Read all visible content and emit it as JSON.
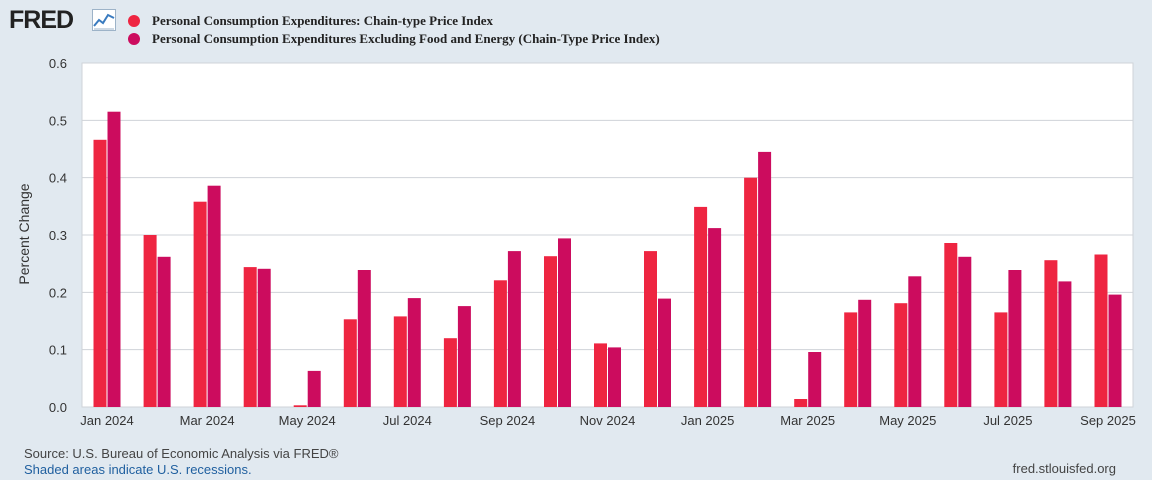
{
  "brand": {
    "logo_text": "FRED",
    "logo_icon": "line-graph-icon"
  },
  "legend": [
    {
      "label": "Personal Consumption Expenditures: Chain-type Price Index",
      "color": "#ee2541"
    },
    {
      "label": "Personal Consumption Expenditures Excluding Food and Energy (Chain-Type Price Index)",
      "color": "#cc0c5e"
    }
  ],
  "footer": {
    "source": "Source: U.S. Bureau of Economic Analysis via FRED®",
    "recession_note": "Shaded areas indicate U.S. recessions.",
    "site": "fred.stlouisfed.org"
  },
  "chart_data": {
    "type": "bar",
    "ylabel": "Percent Change",
    "ylim": [
      0,
      0.6
    ],
    "yticks": [
      "0.0",
      "0.1",
      "0.2",
      "0.3",
      "0.4",
      "0.5",
      "0.6"
    ],
    "grid": true,
    "categories": [
      "2024-01",
      "2024-02",
      "2024-03",
      "2024-04",
      "2024-05",
      "2024-06",
      "2024-07",
      "2024-08",
      "2024-09",
      "2024-10",
      "2024-11",
      "2024-12",
      "2025-01",
      "2025-02",
      "2025-03",
      "2025-04",
      "2025-05",
      "2025-06",
      "2025-07",
      "2025-08",
      "2025-09"
    ],
    "xtick_labels": [
      {
        "category": "2024-01",
        "label": "Jan 2024"
      },
      {
        "category": "2024-03",
        "label": "Mar 2024"
      },
      {
        "category": "2024-05",
        "label": "May 2024"
      },
      {
        "category": "2024-07",
        "label": "Jul 2024"
      },
      {
        "category": "2024-09",
        "label": "Sep 2024"
      },
      {
        "category": "2024-11",
        "label": "Nov 2024"
      },
      {
        "category": "2025-01",
        "label": "Jan 2025"
      },
      {
        "category": "2025-03",
        "label": "Mar 2025"
      },
      {
        "category": "2025-05",
        "label": "May 2025"
      },
      {
        "category": "2025-07",
        "label": "Jul 2025"
      },
      {
        "category": "2025-09",
        "label": "Sep 2025"
      }
    ],
    "series": [
      {
        "name": "Personal Consumption Expenditures: Chain-type Price Index",
        "color": "#ee2541",
        "values": [
          0.466,
          0.3,
          0.358,
          0.244,
          0.003,
          0.153,
          0.158,
          0.12,
          0.221,
          0.263,
          0.111,
          0.272,
          0.349,
          0.4,
          0.014,
          0.165,
          0.181,
          0.286,
          0.165,
          0.256,
          0.266
        ]
      },
      {
        "name": "Personal Consumption Expenditures Excluding Food and Energy (Chain-Type Price Index)",
        "color": "#cc0c5e",
        "values": [
          0.515,
          0.262,
          0.386,
          0.241,
          0.063,
          0.239,
          0.19,
          0.176,
          0.272,
          0.294,
          0.104,
          0.189,
          0.312,
          0.445,
          0.096,
          0.187,
          0.228,
          0.262,
          0.239,
          0.219,
          0.196
        ]
      }
    ]
  }
}
